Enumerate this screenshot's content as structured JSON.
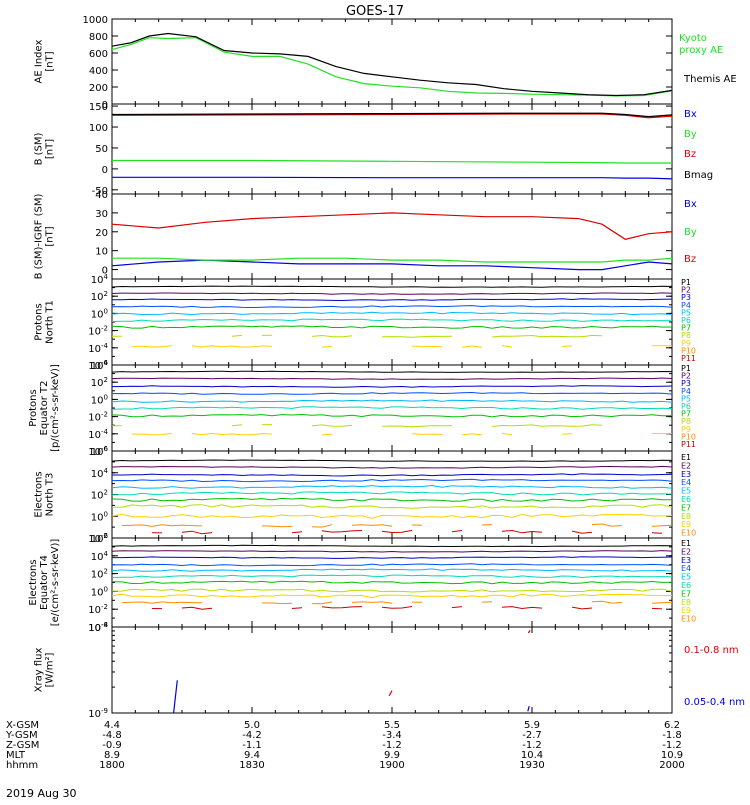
{
  "figure": {
    "title": "GOES-17",
    "date": "2019 Aug 30"
  },
  "colors": {
    "black": "#000000",
    "green": "#22e022",
    "red": "#dd0000",
    "blue": "#0000dd",
    "orange": "#ff8c00",
    "channels": [
      "#000000",
      "#5a005a",
      "#0000cc",
      "#0050ff",
      "#00b8ff",
      "#00dcb4",
      "#00c000",
      "#b4e000",
      "#ffd000",
      "#ff8c00",
      "#cc0000"
    ]
  },
  "chart_data": [
    {
      "type": "line",
      "ylabel": "AE Index [nT]",
      "ylim": [
        0,
        1000
      ],
      "yticks": [
        "1000",
        "800",
        "600",
        "400",
        "200",
        "0"
      ],
      "x": [
        1800,
        1804,
        1808,
        1812,
        1818,
        1824,
        1830,
        1836,
        1842,
        1848,
        1854,
        1900,
        1906,
        1912,
        1918,
        1924,
        1930,
        1936,
        1942,
        1948,
        1954,
        2000
      ],
      "series": [
        {
          "name": "Kyoto proxy AE",
          "color": "green",
          "values": [
            640,
            700,
            780,
            770,
            780,
            610,
            560,
            560,
            470,
            320,
            240,
            210,
            190,
            150,
            130,
            125,
            115,
            110,
            105,
            95,
            100,
            155
          ]
        },
        {
          "name": "Themis AE",
          "color": "black",
          "values": [
            680,
            720,
            800,
            830,
            790,
            630,
            600,
            590,
            560,
            440,
            360,
            320,
            280,
            250,
            230,
            180,
            150,
            130,
            110,
            100,
            110,
            160
          ]
        }
      ],
      "legend": [
        "Kyoto\nproxy AE",
        "Themis AE"
      ]
    },
    {
      "type": "line",
      "ylabel": "B (SM) [nT]",
      "ylim": [
        -60,
        155
      ],
      "yticks": [
        "150",
        "100",
        "50",
        "0",
        "-50"
      ],
      "x": [
        1800,
        1830,
        1900,
        1930,
        1945,
        1950,
        1955,
        2000
      ],
      "series": [
        {
          "name": "Bx",
          "color": "blue",
          "values": [
            -20,
            -20,
            -21,
            -21,
            -21,
            -22,
            -22,
            -24
          ]
        },
        {
          "name": "By",
          "color": "green",
          "values": [
            20,
            20,
            18,
            16,
            15,
            14,
            14,
            14
          ]
        },
        {
          "name": "Bz",
          "color": "red",
          "values": [
            128,
            129,
            130,
            131,
            131,
            128,
            122,
            126
          ]
        },
        {
          "name": "Bmag",
          "color": "black",
          "values": [
            130,
            131,
            132,
            133,
            133,
            130,
            125,
            129
          ]
        }
      ],
      "legend": [
        "Bx",
        "By",
        "Bz",
        "Bmag"
      ]
    },
    {
      "type": "line",
      "ylabel": "B (SM)-IGRF (SM) [nT]",
      "ylim": [
        -5,
        40
      ],
      "yticks": [
        "40",
        "30",
        "20",
        "10",
        "0"
      ],
      "x": [
        1800,
        1810,
        1820,
        1830,
        1840,
        1850,
        1900,
        1910,
        1920,
        1930,
        1940,
        1945,
        1950,
        1955,
        2000
      ],
      "series": [
        {
          "name": "Bx",
          "color": "blue",
          "values": [
            2,
            4,
            5,
            4,
            3,
            3,
            3,
            2,
            2,
            1,
            0,
            0,
            2,
            4,
            3
          ]
        },
        {
          "name": "By",
          "color": "green",
          "values": [
            6,
            6,
            5,
            5,
            6,
            6,
            5,
            5,
            4,
            4,
            4,
            4,
            5,
            5,
            6
          ]
        },
        {
          "name": "Bz",
          "color": "red",
          "values": [
            24,
            22,
            25,
            27,
            28,
            29,
            30,
            29,
            28,
            28,
            27,
            24,
            16,
            19,
            20
          ]
        }
      ],
      "legend": [
        "Bx",
        "By",
        "Bz"
      ]
    },
    {
      "type": "line",
      "ylabel": "Protons North T1",
      "yscale": "log",
      "ylim_exp": [
        -6,
        4
      ],
      "yticks": [
        "10^4",
        "10^2",
        "10^0",
        "10^-2",
        "10^-4",
        "10^-6"
      ],
      "legend": [
        "P1",
        "P2",
        "P3",
        "P4",
        "P5",
        "P6",
        "P7",
        "P8",
        "P9",
        "P10",
        "P11"
      ],
      "levels_log10": [
        3.1,
        2.3,
        1.6,
        0.8,
        0.0,
        -0.8,
        -1.6,
        -2.6,
        -3.8
      ]
    },
    {
      "type": "line",
      "ylabel": "Protons Equator T2 [p/(cm²-s-sr-keV)]",
      "yscale": "log",
      "ylim_exp": [
        -6,
        4
      ],
      "yticks": [
        "10^4",
        "10^2",
        "10^0",
        "10^-2",
        "10^-4",
        "10^-6"
      ],
      "legend": [
        "P1",
        "P2",
        "P3",
        "P4",
        "P5",
        "P6",
        "P7",
        "P8",
        "P9",
        "P10",
        "P11"
      ],
      "levels_log10": [
        3.2,
        2.4,
        1.5,
        0.7,
        -0.2,
        -1.0,
        -1.9,
        -3.0,
        -4.0
      ]
    },
    {
      "type": "line",
      "ylabel": "Electrons North T3",
      "yscale": "log",
      "ylim_exp": [
        -2,
        6
      ],
      "yticks": [
        "10^6",
        "10^4",
        "10^2",
        "10^0",
        "10^-2"
      ],
      "legend": [
        "E1",
        "E2",
        "E3",
        "E4",
        "E5",
        "E6",
        "E7",
        "E8",
        "E9",
        "E10"
      ],
      "levels_log10": [
        5.1,
        4.5,
        3.8,
        3.3,
        2.7,
        2.1,
        1.5,
        0.9,
        0.0,
        -0.8,
        -1.4
      ]
    },
    {
      "type": "line",
      "ylabel": "Electrons Equator T4 [e/(cm²-s-sr-keV)]",
      "yscale": "log",
      "ylim_exp": [
        -4,
        6
      ],
      "yticks": [
        "10^6",
        "10^4",
        "10^2",
        "10^0",
        "10^-2",
        "10^-4"
      ],
      "legend": [
        "E1",
        "E2",
        "E3",
        "E4",
        "E5",
        "E6",
        "E7",
        "E8",
        "E9",
        "E10"
      ],
      "levels_log10": [
        5.1,
        4.5,
        3.8,
        3.0,
        2.4,
        1.7,
        1.0,
        0.1,
        -0.5,
        -1.2,
        -1.8
      ]
    },
    {
      "type": "line",
      "ylabel": "Xray flux [W/m²]",
      "yscale": "log",
      "ylim_exp": [
        -9,
        -8
      ],
      "yticks": [
        "10^-8",
        "10^-9"
      ],
      "legend": [
        "0.1-0.8 nm",
        "0.05-0.4 nm"
      ],
      "segments": [
        {
          "color": "blue",
          "x": [
            1813.2,
            1814.0
          ],
          "y": [
            -9.0,
            -8.62
          ]
        },
        {
          "color": "red",
          "x": [
            1859.4,
            1860.0
          ],
          "y": [
            -8.8,
            -8.74
          ]
        },
        {
          "color": "red",
          "x": [
            1929.2,
            1929.6
          ],
          "y": [
            -8.07,
            -8.04
          ]
        },
        {
          "color": "blue",
          "x": [
            1929.1,
            1929.4
          ],
          "y": [
            -8.98,
            -8.92
          ]
        }
      ]
    }
  ],
  "xaxis": {
    "x": [
      1800,
      1830,
      1900,
      1930,
      2000
    ],
    "rows": [
      {
        "label": "X-GSM",
        "values": [
          "4.4",
          "5.0",
          "5.5",
          "5.9",
          "6.2"
        ]
      },
      {
        "label": "Y-GSM",
        "values": [
          "-4.8",
          "-4.2",
          "-3.4",
          "-2.7",
          "-1.8"
        ]
      },
      {
        "label": "Z-GSM",
        "values": [
          "-0.9",
          "-1.1",
          "-1.2",
          "-1.2",
          "-1.2"
        ]
      },
      {
        "label": "MLT",
        "values": [
          "8.9",
          "9.4",
          "9.9",
          "10.4",
          "10.9"
        ]
      },
      {
        "label": "hhmm",
        "values": [
          "1800",
          "1830",
          "1900",
          "1930",
          "2000"
        ]
      }
    ]
  }
}
